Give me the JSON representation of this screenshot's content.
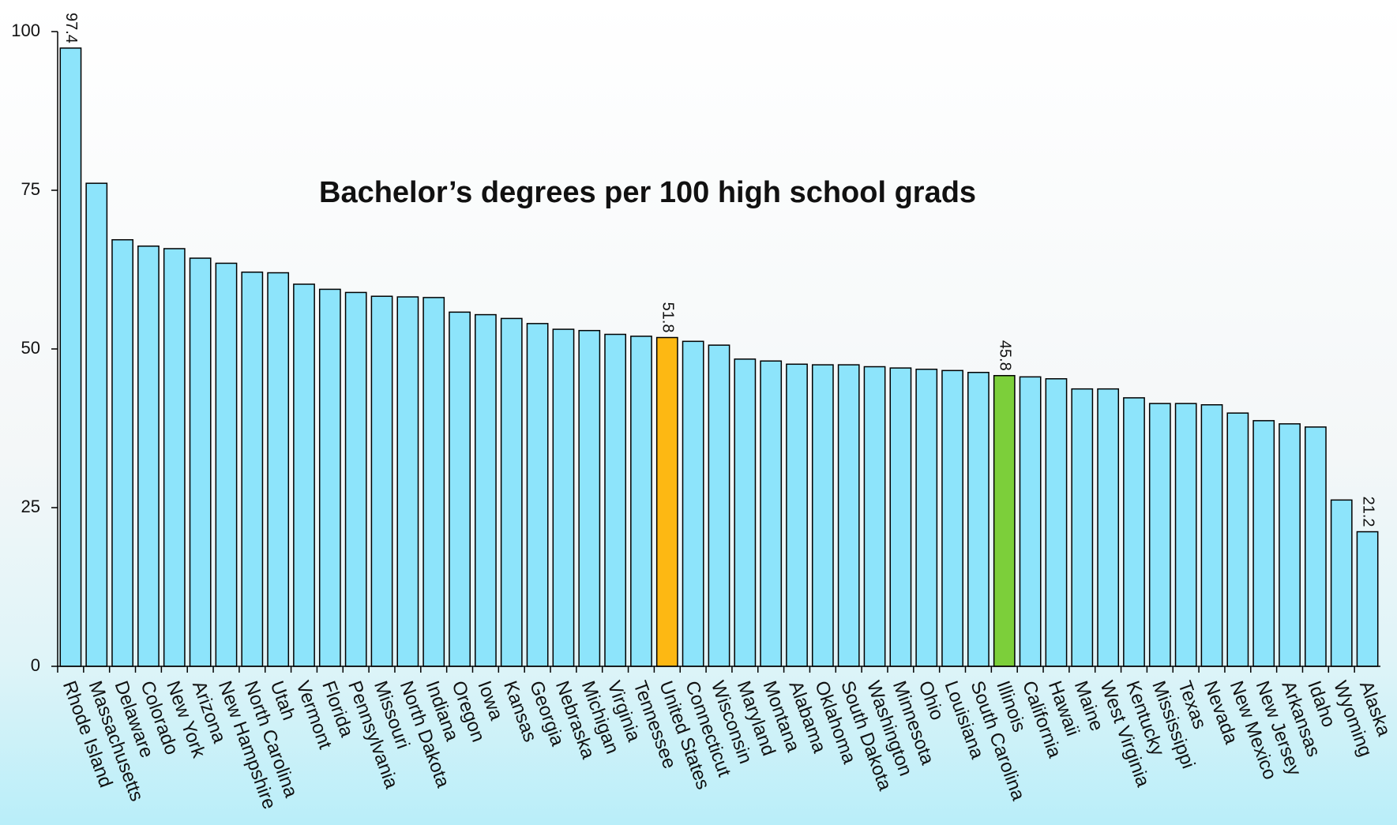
{
  "chart_data": {
    "type": "bar",
    "title": "Bachelor’s degrees per 100 high school grads",
    "categories": [
      "Rhode Island",
      "Massachusetts",
      "Delaware",
      "Colorado",
      "New York",
      "Arizona",
      "New Hampshire",
      "North Carolina",
      "Utah",
      "Vermont",
      "Florida",
      "Pennsylvania",
      "Missouri",
      "North Dakota",
      "Indiana",
      "Oregon",
      "Iowa",
      "Kansas",
      "Georgia",
      "Nebraska",
      "Michigan",
      "Virginia",
      "Tennessee",
      "United States",
      "Connecticut",
      "Wisconsin",
      "Maryland",
      "Montana",
      "Alabama",
      "Oklahoma",
      "South Dakota",
      "Washington",
      "Minnesota",
      "Ohio",
      "Louisiana",
      "South Carolina",
      "Illinois",
      "California",
      "Hawaii",
      "Maine",
      "West Virginia",
      "Kentucky",
      "Mississippi",
      "Texas",
      "Nevada",
      "New Mexico",
      "New Jersey",
      "Arkansas",
      "Idaho",
      "Wyoming",
      "Alaska"
    ],
    "values": [
      97.4,
      76.1,
      67.2,
      66.2,
      65.8,
      64.3,
      63.5,
      62.1,
      62.0,
      60.2,
      59.4,
      58.9,
      58.3,
      58.2,
      58.1,
      55.8,
      55.4,
      54.8,
      54.0,
      53.1,
      52.9,
      52.3,
      52.0,
      51.8,
      51.2,
      50.6,
      48.4,
      48.1,
      47.6,
      47.5,
      47.5,
      47.2,
      47.0,
      46.8,
      46.6,
      46.3,
      45.8,
      45.6,
      45.3,
      43.7,
      43.7,
      42.3,
      41.4,
      41.4,
      41.2,
      39.9,
      38.7,
      38.2,
      37.7,
      26.2,
      21.2
    ],
    "value_labels": [
      "97.4",
      null,
      null,
      null,
      null,
      null,
      null,
      null,
      null,
      null,
      null,
      null,
      null,
      null,
      null,
      null,
      null,
      null,
      null,
      null,
      null,
      null,
      null,
      "51.8",
      null,
      null,
      null,
      null,
      null,
      null,
      null,
      null,
      null,
      null,
      null,
      null,
      "45.8",
      null,
      null,
      null,
      null,
      null,
      null,
      null,
      null,
      null,
      null,
      null,
      null,
      null,
      "21.2"
    ],
    "colors": [
      "#8de4fb",
      "#8de4fb",
      "#8de4fb",
      "#8de4fb",
      "#8de4fb",
      "#8de4fb",
      "#8de4fb",
      "#8de4fb",
      "#8de4fb",
      "#8de4fb",
      "#8de4fb",
      "#8de4fb",
      "#8de4fb",
      "#8de4fb",
      "#8de4fb",
      "#8de4fb",
      "#8de4fb",
      "#8de4fb",
      "#8de4fb",
      "#8de4fb",
      "#8de4fb",
      "#8de4fb",
      "#8de4fb",
      "#fdb813",
      "#8de4fb",
      "#8de4fb",
      "#8de4fb",
      "#8de4fb",
      "#8de4fb",
      "#8de4fb",
      "#8de4fb",
      "#8de4fb",
      "#8de4fb",
      "#8de4fb",
      "#8de4fb",
      "#8de4fb",
      "#7ccf3a",
      "#8de4fb",
      "#8de4fb",
      "#8de4fb",
      "#8de4fb",
      "#8de4fb",
      "#8de4fb",
      "#8de4fb",
      "#8de4fb",
      "#8de4fb",
      "#8de4fb",
      "#8de4fb",
      "#8de4fb",
      "#8de4fb",
      "#8de4fb"
    ],
    "ylim": [
      0,
      100
    ],
    "yticks": [
      0,
      25,
      50,
      75,
      100
    ],
    "grid": false
  }
}
